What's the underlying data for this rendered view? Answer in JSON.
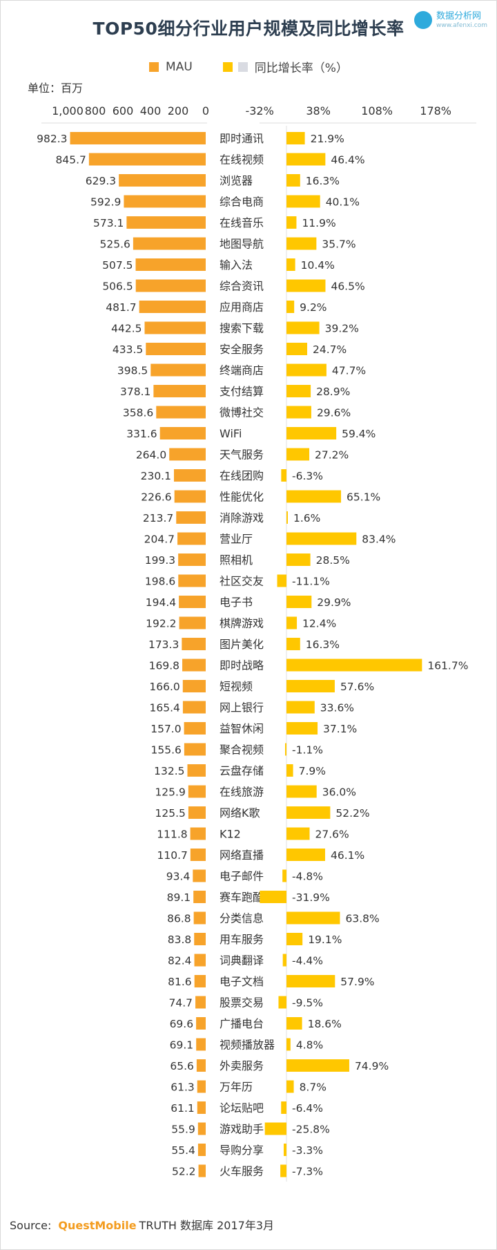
{
  "chart_data": {
    "type": "bar",
    "title": "TOP50细分行业用户规模及同比增长率",
    "unit_label": "单位：百万",
    "legend": [
      {
        "name": "MAU",
        "color": "#F7A32A"
      },
      {
        "name": "同比增长率（%）",
        "color": "#FFC700",
        "color2": "#D9DBE2"
      }
    ],
    "left_axis": {
      "ticks": [
        "1,000",
        "800",
        "600",
        "400",
        "200",
        "0"
      ],
      "range": [
        0,
        1000
      ],
      "direction": "reversed"
    },
    "right_axis": {
      "ticks": [
        "-32%",
        "38%",
        "108%",
        "178%"
      ],
      "range": [
        -32,
        178
      ]
    },
    "categories": [
      "即时通讯",
      "在线视频",
      "浏览器",
      "综合电商",
      "在线音乐",
      "地图导航",
      "输入法",
      "综合资讯",
      "应用商店",
      "搜索下载",
      "安全服务",
      "终端商店",
      "支付结算",
      "微博社交",
      "WiFi",
      "天气服务",
      "在线团购",
      "性能优化",
      "消除游戏",
      "营业厅",
      "照相机",
      "社区交友",
      "电子书",
      "棋牌游戏",
      "图片美化",
      "即时战略",
      "短视频",
      "网上银行",
      "益智休闲",
      "聚合视频",
      "云盘存储",
      "在线旅游",
      "网络K歌",
      "K12",
      "网络直播",
      "电子邮件",
      "赛车跑酷",
      "分类信息",
      "用车服务",
      "词典翻译",
      "电子文档",
      "股票交易",
      "广播电台",
      "视频播放器",
      "外卖服务",
      "万年历",
      "论坛贴吧",
      "游戏助手",
      "导购分享",
      "火车服务"
    ],
    "series": [
      {
        "name": "MAU",
        "values": [
          982.3,
          845.7,
          629.3,
          592.9,
          573.1,
          525.6,
          507.5,
          506.5,
          481.7,
          442.5,
          433.5,
          398.5,
          378.1,
          358.6,
          331.6,
          264.0,
          230.1,
          226.6,
          213.7,
          204.7,
          199.3,
          198.6,
          194.4,
          192.2,
          173.3,
          169.8,
          166.0,
          165.4,
          157.0,
          155.6,
          132.5,
          125.9,
          125.5,
          111.8,
          110.7,
          93.4,
          89.1,
          86.8,
          83.8,
          82.4,
          81.6,
          74.7,
          69.6,
          69.1,
          65.6,
          61.3,
          61.1,
          55.9,
          55.4,
          52.2
        ]
      },
      {
        "name": "同比增长率",
        "values": [
          21.9,
          46.4,
          16.3,
          40.1,
          11.9,
          35.7,
          10.4,
          46.5,
          9.2,
          39.2,
          24.7,
          47.7,
          28.9,
          29.6,
          59.4,
          27.2,
          -6.3,
          65.1,
          1.6,
          83.4,
          28.5,
          -11.1,
          29.9,
          12.4,
          16.3,
          161.7,
          57.6,
          33.6,
          37.1,
          -1.1,
          7.9,
          36.0,
          52.2,
          27.6,
          46.1,
          -4.8,
          -31.9,
          63.8,
          19.1,
          -4.4,
          57.9,
          -9.5,
          18.6,
          4.8,
          74.9,
          8.7,
          -6.4,
          -25.8,
          -3.3,
          -7.3
        ]
      }
    ],
    "mau_labels": [
      "982.3",
      "845.7",
      "629.3",
      "592.9",
      "573.1",
      "525.6",
      "507.5",
      "506.5",
      "481.7",
      "442.5",
      "433.5",
      "398.5",
      "378.1",
      "358.6",
      "331.6",
      "264.0",
      "230.1",
      "226.6",
      "213.7",
      "204.7",
      "199.3",
      "198.6",
      "194.4",
      "192.2",
      "173.3",
      "169.8",
      "166.0",
      "165.4",
      "157.0",
      "155.6",
      "132.5",
      "125.9",
      "125.5",
      "111.8",
      "110.7",
      "93.4",
      "89.1",
      "86.8",
      "83.8",
      "82.4",
      "81.6",
      "74.7",
      "69.6",
      "69.1",
      "65.6",
      "61.3",
      "61.1",
      "55.9",
      "55.4",
      "52.2"
    ],
    "growth_labels": [
      "21.9%",
      "46.4%",
      "16.3%",
      "40.1%",
      "11.9%",
      "35.7%",
      "10.4%",
      "46.5%",
      "9.2%",
      "39.2%",
      "24.7%",
      "47.7%",
      "28.9%",
      "29.6%",
      "59.4%",
      "27.2%",
      "-6.3%",
      "65.1%",
      "1.6%",
      "83.4%",
      "28.5%",
      "-11.1%",
      "29.9%",
      "12.4%",
      "16.3%",
      "161.7%",
      "57.6%",
      "33.6%",
      "37.1%",
      "-1.1%",
      "7.9%",
      "36.0%",
      "52.2%",
      "27.6%",
      "46.1%",
      "-4.8%",
      "-31.9%",
      "63.8%",
      "19.1%",
      "-4.4%",
      "57.9%",
      "-9.5%",
      "18.6%",
      "4.8%",
      "74.9%",
      "8.7%",
      "-6.4%",
      "-25.8%",
      "-3.3%",
      "-7.3%"
    ]
  },
  "watermark": {
    "name_cn": "数据分析网",
    "name_en": "www.afenxi.com"
  },
  "source": {
    "prefix": "Source:",
    "brand": "QuestMobile",
    "rest": "TRUTH 数据库 2017年3月"
  },
  "colors": {
    "mau": "#F7A32A",
    "growth": "#FFC700",
    "title": "#2D3E50"
  }
}
